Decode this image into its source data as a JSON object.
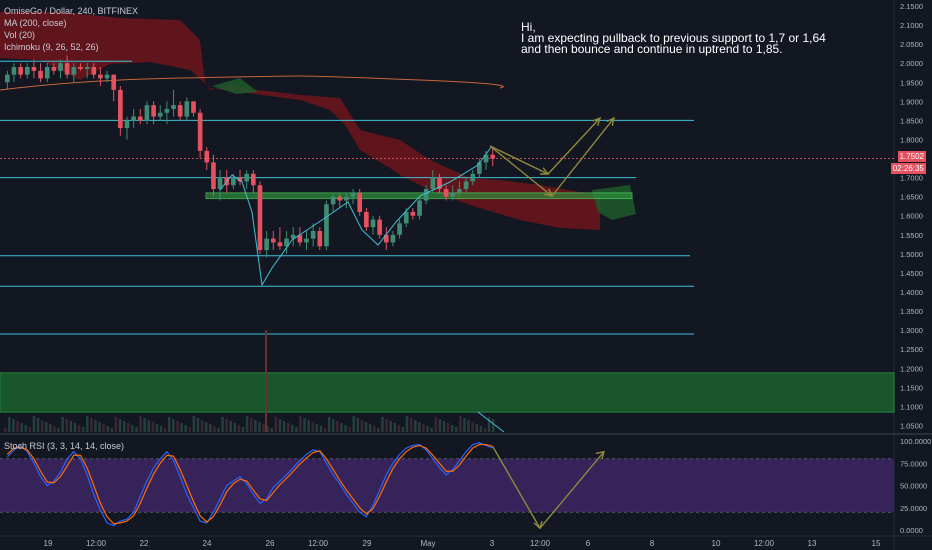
{
  "legend": {
    "line1": "OmiseGo / Dollar, 240, BITFINEX",
    "line2": "MA (200, close)",
    "line3": "Vol (20)",
    "line4": "Ichimoku (9, 26, 52, 26)",
    "stoch": "Stoch RSI (3, 3, 14, 14, close)"
  },
  "note": "Hi,\nI am expecting pullback to previous support to 1,7 or 1,64\nand then bounce and continue in uptrend to 1,85.",
  "last_price": {
    "value": "1.7502",
    "countdown": "02:26:35"
  },
  "colors": {
    "background": "#131722",
    "up": "#3f8b73",
    "down": "#e5515f",
    "cyan_line": "#3fc1d6",
    "ma": "#c8663c",
    "arrow": "#8f8a3c",
    "cloud_red": "#7a1519",
    "cloud_green": "#1d5a2a",
    "stoch_bg": "#3a2561"
  },
  "chart_data": [
    {
      "type": "candlestick",
      "title": "OmiseGo / Dollar, 240, BITFINEX",
      "ylim": [
        1.025,
        2.15
      ],
      "yticks": [
        "2.1500",
        "2.1000",
        "2.0500",
        "2.0000",
        "1.9500",
        "1.9000",
        "1.8500",
        "1.8000",
        "1.7500",
        "1.7000",
        "1.6500",
        "1.6000",
        "1.5500",
        "1.5000",
        "1.4500",
        "1.4000",
        "1.3500",
        "1.3000",
        "1.2500",
        "1.2000",
        "1.1500",
        "1.1000",
        "1.0500"
      ],
      "xticks": [
        "19",
        "12:00",
        "22",
        "24",
        "26",
        "12:00",
        "29",
        "May",
        "3",
        "12:00",
        "6",
        "8",
        "10",
        "12:00",
        "13",
        "15"
      ],
      "horizontal_lines": [
        2.005,
        1.85,
        1.7,
        1.495,
        1.415,
        1.29
      ],
      "support_zone": [
        1.645,
        1.66
      ],
      "demand_zone": [
        1.085,
        1.188
      ],
      "ohlc": [
        [
          1.95,
          1.98,
          1.93,
          1.97
        ],
        [
          1.97,
          2.0,
          1.95,
          1.99
        ],
        [
          1.99,
          2.0,
          1.96,
          1.97
        ],
        [
          1.97,
          2.0,
          1.96,
          1.99
        ],
        [
          1.99,
          2.01,
          1.96,
          1.98
        ],
        [
          1.98,
          2.0,
          1.95,
          1.96
        ],
        [
          1.96,
          2.0,
          1.95,
          1.99
        ],
        [
          1.99,
          2.0,
          1.97,
          1.98
        ],
        [
          1.98,
          2.01,
          1.96,
          2.0
        ],
        [
          2.0,
          2.02,
          1.96,
          1.97
        ],
        [
          1.97,
          2.0,
          1.95,
          1.99
        ],
        [
          1.99,
          2.0,
          1.98,
          1.985
        ],
        [
          1.985,
          2.0,
          1.96,
          1.99
        ],
        [
          1.99,
          2.0,
          1.96,
          1.97
        ],
        [
          1.97,
          1.99,
          1.94,
          1.96
        ],
        [
          1.96,
          1.98,
          1.95,
          1.97
        ],
        [
          1.97,
          1.97,
          1.9,
          1.93
        ],
        [
          1.93,
          1.94,
          1.81,
          1.83
        ],
        [
          1.83,
          1.86,
          1.8,
          1.85
        ],
        [
          1.85,
          1.88,
          1.83,
          1.86
        ],
        [
          1.86,
          1.88,
          1.84,
          1.85
        ],
        [
          1.85,
          1.9,
          1.84,
          1.89
        ],
        [
          1.89,
          1.9,
          1.84,
          1.86
        ],
        [
          1.86,
          1.89,
          1.85,
          1.87
        ],
        [
          1.87,
          1.9,
          1.84,
          1.88
        ],
        [
          1.88,
          1.93,
          1.86,
          1.89
        ],
        [
          1.89,
          1.9,
          1.85,
          1.86
        ],
        [
          1.86,
          1.91,
          1.85,
          1.9
        ],
        [
          1.9,
          1.9,
          1.86,
          1.87
        ],
        [
          1.87,
          1.88,
          1.75,
          1.77
        ],
        [
          1.77,
          1.78,
          1.72,
          1.74
        ],
        [
          1.74,
          1.76,
          1.65,
          1.67
        ],
        [
          1.67,
          1.72,
          1.64,
          1.7
        ],
        [
          1.7,
          1.72,
          1.66,
          1.68
        ],
        [
          1.68,
          1.71,
          1.67,
          1.7
        ],
        [
          1.7,
          1.72,
          1.68,
          1.69
        ],
        [
          1.69,
          1.72,
          1.67,
          1.71
        ],
        [
          1.71,
          1.72,
          1.66,
          1.68
        ],
        [
          1.68,
          1.69,
          1.5,
          1.51
        ],
        [
          1.51,
          1.56,
          1.49,
          1.54
        ],
        [
          1.54,
          1.56,
          1.51,
          1.53
        ],
        [
          1.53,
          1.57,
          1.51,
          1.52
        ],
        [
          1.52,
          1.56,
          1.5,
          1.54
        ],
        [
          1.54,
          1.57,
          1.52,
          1.55
        ],
        [
          1.55,
          1.57,
          1.52,
          1.53
        ],
        [
          1.53,
          1.56,
          1.51,
          1.54
        ],
        [
          1.54,
          1.58,
          1.52,
          1.56
        ],
        [
          1.56,
          1.57,
          1.51,
          1.52
        ],
        [
          1.52,
          1.64,
          1.51,
          1.63
        ],
        [
          1.63,
          1.66,
          1.61,
          1.65
        ],
        [
          1.65,
          1.66,
          1.62,
          1.64
        ],
        [
          1.64,
          1.66,
          1.62,
          1.65
        ],
        [
          1.65,
          1.67,
          1.63,
          1.66
        ],
        [
          1.66,
          1.67,
          1.6,
          1.61
        ],
        [
          1.61,
          1.62,
          1.56,
          1.57
        ],
        [
          1.57,
          1.6,
          1.55,
          1.59
        ],
        [
          1.59,
          1.6,
          1.54,
          1.55
        ],
        [
          1.55,
          1.57,
          1.51,
          1.53
        ],
        [
          1.53,
          1.56,
          1.52,
          1.55
        ],
        [
          1.55,
          1.59,
          1.54,
          1.58
        ],
        [
          1.58,
          1.62,
          1.57,
          1.61
        ],
        [
          1.61,
          1.62,
          1.59,
          1.6
        ],
        [
          1.6,
          1.65,
          1.59,
          1.64
        ],
        [
          1.64,
          1.68,
          1.63,
          1.67
        ],
        [
          1.67,
          1.72,
          1.66,
          1.7
        ],
        [
          1.7,
          1.71,
          1.66,
          1.67
        ],
        [
          1.67,
          1.68,
          1.64,
          1.65
        ],
        [
          1.65,
          1.68,
          1.64,
          1.66
        ],
        [
          1.66,
          1.69,
          1.65,
          1.67
        ],
        [
          1.67,
          1.7,
          1.66,
          1.69
        ],
        [
          1.69,
          1.72,
          1.68,
          1.71
        ],
        [
          1.71,
          1.75,
          1.7,
          1.74
        ],
        [
          1.74,
          1.77,
          1.72,
          1.76
        ],
        [
          1.76,
          1.78,
          1.73,
          1.75
        ]
      ]
    },
    {
      "type": "line",
      "title": "Stoch RSI (3, 3, 14, 14, close)",
      "ylim": [
        0,
        100
      ],
      "yticks": [
        "100.0000",
        "75.0000",
        "50.0000",
        "25.0000",
        "0.0000"
      ],
      "bands": [
        20,
        80
      ],
      "series": [
        {
          "values": [
            82,
            90,
            95,
            88,
            75,
            60,
            50,
            55,
            65,
            80,
            88,
            80,
            62,
            40,
            22,
            8,
            5,
            10,
            12,
            20,
            38,
            55,
            70,
            80,
            88,
            78,
            60,
            40,
            25,
            10,
            8,
            20,
            35,
            50,
            55,
            60,
            52,
            40,
            30,
            35,
            48,
            55,
            62,
            70,
            78,
            85,
            90,
            88,
            75,
            62,
            52,
            40,
            30,
            20,
            15,
            28,
            45,
            62,
            75,
            85,
            92,
            95,
            96,
            90,
            80,
            70,
            62,
            68,
            78,
            88,
            96,
            98,
            95,
            92
          ]
        },
        {
          "values": [
            85,
            92,
            93,
            90,
            80,
            66,
            54,
            53,
            60,
            72,
            84,
            84,
            70,
            50,
            30,
            15,
            7,
            8,
            10,
            16,
            30,
            47,
            63,
            75,
            84,
            83,
            68,
            50,
            32,
            16,
            9,
            15,
            28,
            43,
            52,
            57,
            55,
            45,
            35,
            33,
            42,
            51,
            58,
            66,
            74,
            81,
            87,
            89,
            80,
            68,
            56,
            45,
            35,
            25,
            18,
            24,
            38,
            54,
            69,
            80,
            88,
            93,
            95,
            92,
            84,
            75,
            66,
            66,
            73,
            83,
            92,
            96,
            96,
            94
          ]
        }
      ]
    }
  ]
}
